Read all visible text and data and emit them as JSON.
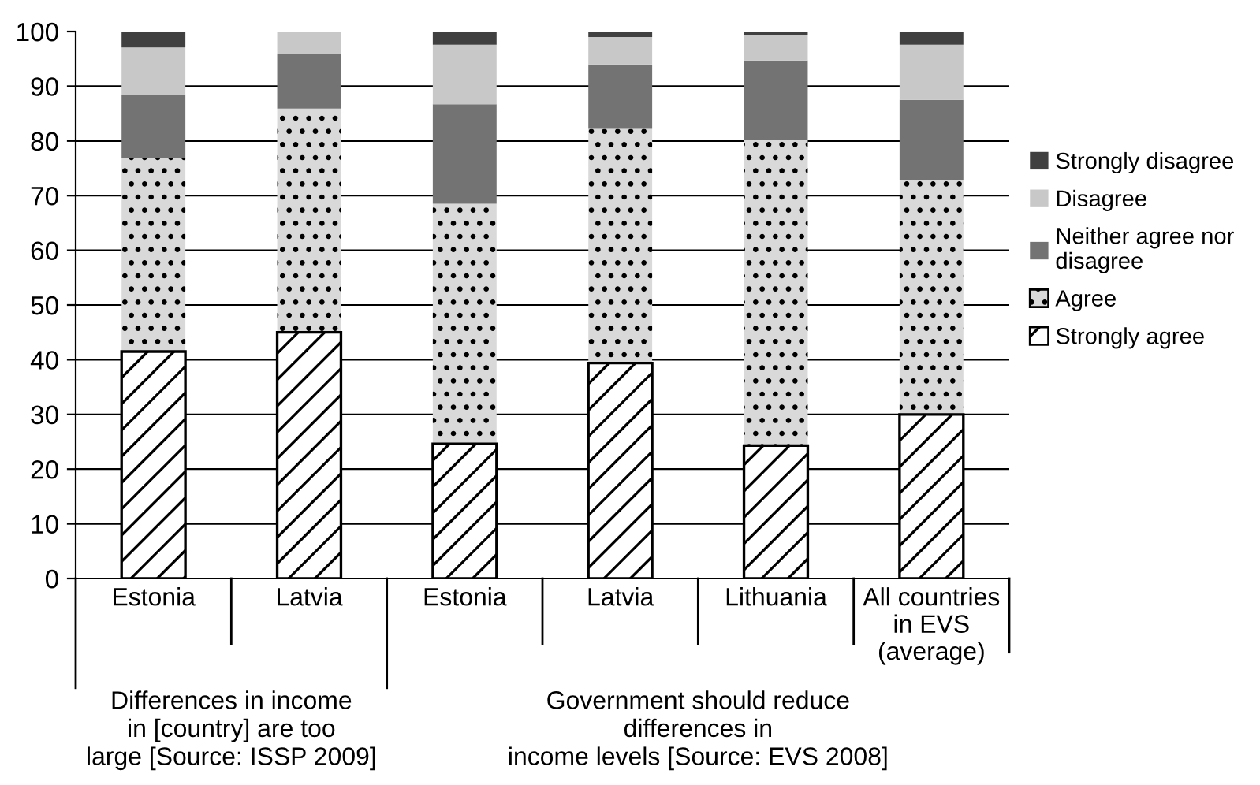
{
  "chart_data": {
    "type": "bar",
    "stacked": true,
    "categories": [
      "Estonia",
      "Latvia",
      "Estonia",
      "Latvia",
      "Lithuania",
      "All countries\nin EVS\n(average)"
    ],
    "series": [
      {
        "name": "Strongly agree",
        "color": "#ffffff",
        "values": [
          41.5,
          45.0,
          24.6,
          39.4,
          24.3,
          30.0
        ]
      },
      {
        "name": "Agree",
        "color": "#d9d9d9",
        "values": [
          35.3,
          40.9,
          43.9,
          42.8,
          55.9,
          42.8
        ]
      },
      {
        "name": "Neither agree nor\ndisagree",
        "color": "#737373",
        "values": [
          11.6,
          10.0,
          18.2,
          11.8,
          14.5,
          14.7
        ]
      },
      {
        "name": "Disagree",
        "color": "#c8c8c8",
        "values": [
          8.7,
          4.1,
          10.9,
          5.0,
          4.7,
          10.1
        ]
      },
      {
        "name": "Strongly disagree",
        "color": "#404040",
        "values": [
          2.9,
          0.0,
          2.4,
          1.0,
          0.6,
          2.4
        ]
      }
    ],
    "annotations": [
      "Differences in income\nin [country] are too\nlarge [Source: ISSP 2009]",
      "Government should reduce\ndifferences in\nincome levels [Source: EVS 2008]"
    ],
    "ylim": [
      0,
      100
    ],
    "yticks": [
      0,
      10,
      20,
      30,
      40,
      50,
      60,
      70,
      80,
      90,
      100
    ],
    "grid": "y",
    "legend": "right"
  }
}
